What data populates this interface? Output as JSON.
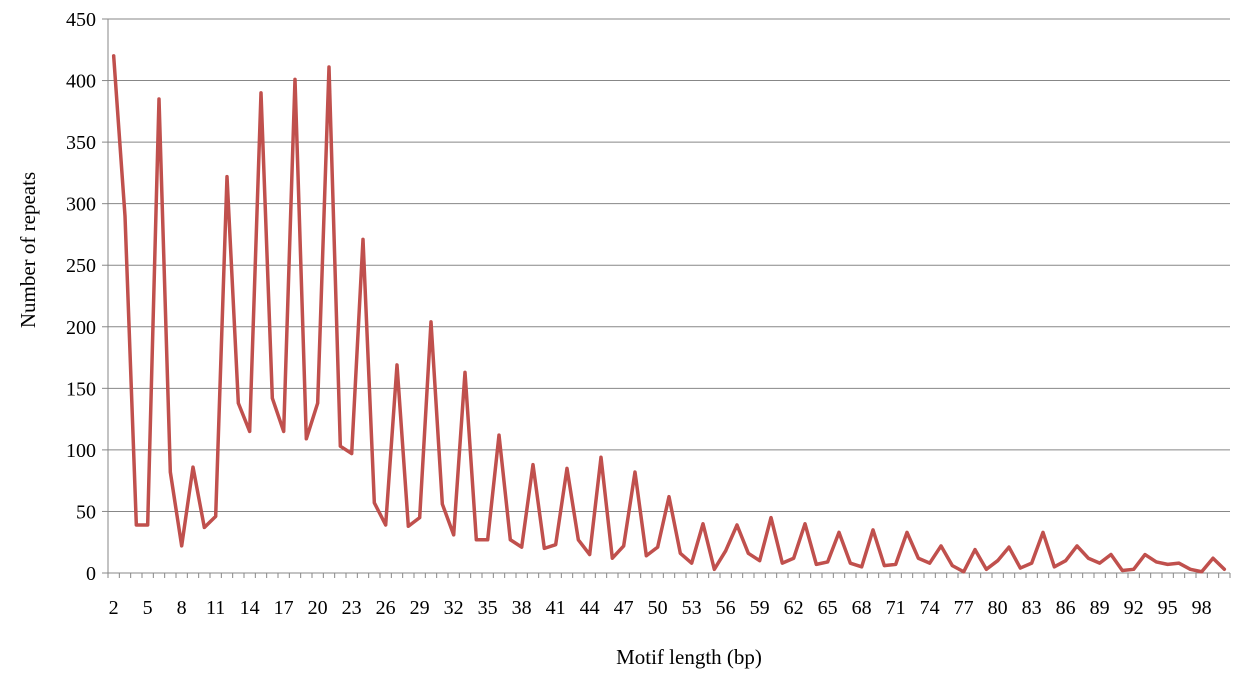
{
  "chart_data": {
    "type": "line",
    "title": "",
    "xlabel": "Motif length (bp)",
    "ylabel": "Number of repeats",
    "ylim": [
      0,
      450
    ],
    "y_ticks": [
      0,
      50,
      100,
      150,
      200,
      250,
      300,
      350,
      400,
      450
    ],
    "x_tick_labels": [
      "2",
      "5",
      "8",
      "11",
      "14",
      "17",
      "20",
      "23",
      "26",
      "29",
      "32",
      "35",
      "38",
      "41",
      "44",
      "47",
      "50",
      "53",
      "56",
      "59",
      "62",
      "65",
      "68",
      "71",
      "74",
      "77",
      "80",
      "83",
      "86",
      "89",
      "92",
      "95",
      "98"
    ],
    "grid": "horizontal",
    "legend": "none",
    "series": [
      {
        "color": "#c0504d",
        "x": [
          2,
          3,
          4,
          5,
          6,
          7,
          8,
          9,
          10,
          11,
          12,
          13,
          14,
          15,
          16,
          17,
          18,
          19,
          20,
          21,
          22,
          23,
          24,
          25,
          26,
          27,
          28,
          29,
          30,
          31,
          32,
          33,
          34,
          35,
          36,
          37,
          38,
          39,
          40,
          41,
          42,
          43,
          44,
          45,
          46,
          47,
          48,
          49,
          50,
          51,
          52,
          53,
          54,
          55,
          56,
          57,
          58,
          59,
          60,
          61,
          62,
          63,
          64,
          65,
          66,
          67,
          68,
          69,
          70,
          71,
          72,
          73,
          74,
          75,
          76,
          77,
          78,
          79,
          80,
          81,
          82,
          83,
          84,
          85,
          86,
          87,
          88,
          89,
          90,
          91,
          92,
          93,
          94,
          95,
          96,
          97,
          98,
          99,
          100
        ],
        "values": [
          420,
          290,
          39,
          39,
          385,
          82,
          22,
          86,
          37,
          46,
          322,
          138,
          115,
          390,
          142,
          115,
          401,
          109,
          138,
          411,
          103,
          97,
          271,
          57,
          39,
          169,
          38,
          45,
          204,
          56,
          31,
          163,
          27,
          27,
          112,
          27,
          21,
          88,
          20,
          23,
          85,
          27,
          15,
          94,
          12,
          22,
          82,
          14,
          21,
          62,
          16,
          8,
          40,
          3,
          18,
          39,
          16,
          10,
          45,
          8,
          12,
          40,
          7,
          9,
          33,
          8,
          5,
          35,
          6,
          7,
          33,
          12,
          8,
          22,
          6,
          1,
          19,
          3,
          10,
          21,
          4,
          8,
          33,
          5,
          10,
          22,
          12,
          8,
          15,
          2,
          3,
          15,
          9,
          7,
          8,
          3,
          1,
          12,
          3
        ]
      }
    ]
  }
}
